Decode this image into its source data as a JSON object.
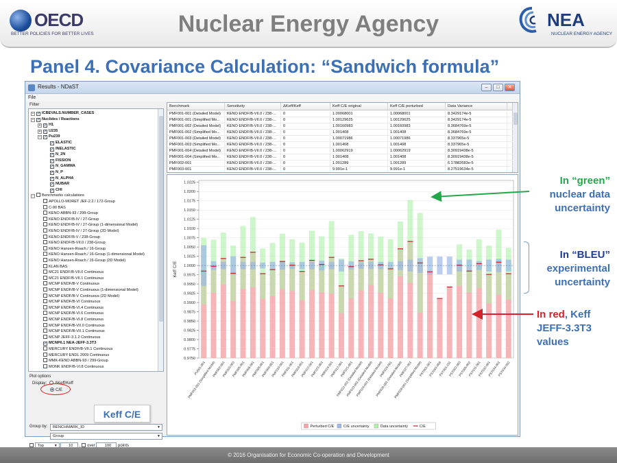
{
  "header": {
    "oecd_word": "OECD",
    "oecd_tagline": "BETTER POLICIES FOR BETTER LIVES",
    "title": "Nuclear Energy Agency",
    "nea_word": "NEA",
    "nea_tagline": "NUCLEAR ENERGY AGENCY"
  },
  "slide_title": "Panel 4. Covariance Calculation: “Sandwich formula”",
  "window": {
    "title": "Results - NDaST",
    "menu_file": "File",
    "controls": {
      "minimize": "–",
      "maximize": "□",
      "close": "✕"
    }
  },
  "filter": {
    "label": "Filter",
    "tree": [
      {
        "level": 0,
        "exp": "–",
        "checked": true,
        "bold": true,
        "label": "ICBEVALS.NUMBER_CASES"
      },
      {
        "level": 0,
        "exp": "–",
        "checked": true,
        "bold": true,
        "label": "Nuclides / Reactions"
      },
      {
        "level": 1,
        "exp": "+",
        "checked": true,
        "bold": true,
        "label": "H1"
      },
      {
        "level": 1,
        "exp": "+",
        "checked": true,
        "bold": true,
        "label": "U235"
      },
      {
        "level": 1,
        "exp": "–",
        "checked": true,
        "bold": true,
        "label": "Pu239"
      },
      {
        "level": 2,
        "exp": "",
        "checked": true,
        "bold": true,
        "label": "ELASTIC"
      },
      {
        "level": 2,
        "exp": "",
        "checked": true,
        "bold": true,
        "label": "INELASTIC"
      },
      {
        "level": 2,
        "exp": "",
        "checked": true,
        "bold": true,
        "label": "N_2N"
      },
      {
        "level": 2,
        "exp": "",
        "checked": true,
        "bold": true,
        "label": "FISSION"
      },
      {
        "level": 2,
        "exp": "",
        "checked": true,
        "bold": true,
        "label": "N_GAMMA"
      },
      {
        "level": 2,
        "exp": "",
        "checked": true,
        "bold": true,
        "label": "N_P"
      },
      {
        "level": 2,
        "exp": "",
        "checked": true,
        "bold": true,
        "label": "N_ALPHA"
      },
      {
        "level": 2,
        "exp": "",
        "checked": true,
        "bold": true,
        "label": "NUBAR"
      },
      {
        "level": 2,
        "exp": "",
        "checked": true,
        "bold": true,
        "label": "CHI"
      },
      {
        "level": 0,
        "exp": "–",
        "checked": false,
        "bold": false,
        "label": "Benchmarks calculations"
      },
      {
        "level": 1,
        "exp": "",
        "checked": false,
        "bold": false,
        "label": "APOLLO-MORET JEF-2.2 / 172-Group"
      },
      {
        "level": 1,
        "exp": "",
        "checked": false,
        "bold": false,
        "label": "C-90 BAS"
      },
      {
        "level": 1,
        "exp": "",
        "checked": false,
        "bold": false,
        "label": "KENO ABBN-93 / 299-Group"
      },
      {
        "level": 1,
        "exp": "",
        "checked": false,
        "bold": false,
        "label": "KENO ENDF/B-IV / 27-Group"
      },
      {
        "level": 1,
        "exp": "",
        "checked": false,
        "bold": false,
        "label": "KENO ENDF/B-IV / 27-Group (1-dimensional Model)"
      },
      {
        "level": 1,
        "exp": "",
        "checked": false,
        "bold": false,
        "label": "KENO ENDF/B-IV / 27-Group (2D Model)"
      },
      {
        "level": 1,
        "exp": "",
        "checked": false,
        "bold": false,
        "label": "KENO ENDF/B-V / 238-Group"
      },
      {
        "level": 1,
        "exp": "",
        "checked": false,
        "bold": false,
        "label": "KENO ENDF/B-VII.0 / 238-Group"
      },
      {
        "level": 1,
        "exp": "",
        "checked": false,
        "bold": false,
        "label": "KENO Hansen-Roach / 16-Group"
      },
      {
        "level": 1,
        "exp": "",
        "checked": false,
        "bold": false,
        "label": "KENO Hansen-Roach / 16-Group (1-dimensional Model)"
      },
      {
        "level": 1,
        "exp": "",
        "checked": false,
        "bold": false,
        "label": "KENO Hansen-Roach / 16-Group (2D Model)"
      },
      {
        "level": 1,
        "exp": "",
        "checked": false,
        "bold": false,
        "label": "KLAN BAS"
      },
      {
        "level": 1,
        "exp": "",
        "checked": false,
        "bold": false,
        "label": "MC21 ENDF/B-VII.0 Continuous"
      },
      {
        "level": 1,
        "exp": "",
        "checked": false,
        "bold": false,
        "label": "MC21 ENDF/B-VII.1 Continuous"
      },
      {
        "level": 1,
        "exp": "",
        "checked": false,
        "bold": false,
        "label": "MCNP ENDF/B-V Continuous"
      },
      {
        "level": 1,
        "exp": "",
        "checked": false,
        "bold": false,
        "label": "MCNP ENDF/B-V Continuous (1-dimensional Model)"
      },
      {
        "level": 1,
        "exp": "",
        "checked": false,
        "bold": false,
        "label": "MCNP ENDF/B-V Continuous (2D Model)"
      },
      {
        "level": 1,
        "exp": "",
        "checked": false,
        "bold": false,
        "label": "MCNP ENDF/B-VI Continuous"
      },
      {
        "level": 1,
        "exp": "",
        "checked": false,
        "bold": false,
        "label": "MCNP ENDF/B-VI.4 Continuous"
      },
      {
        "level": 1,
        "exp": "",
        "checked": false,
        "bold": false,
        "label": "MCNP ENDF/B-VI.6 Continuous"
      },
      {
        "level": 1,
        "exp": "",
        "checked": false,
        "bold": false,
        "label": "MCNP ENDF/B-VI.8 Continuous"
      },
      {
        "level": 1,
        "exp": "",
        "checked": false,
        "bold": false,
        "label": "MCNP ENDF/B-VII.0 Continuous"
      },
      {
        "level": 1,
        "exp": "",
        "checked": false,
        "bold": false,
        "label": "MCNP ENDF/B-VII.1 Continuous"
      },
      {
        "level": 1,
        "exp": "",
        "checked": false,
        "bold": false,
        "label": "MCNP JEFF-3.1.2 Continuous"
      },
      {
        "level": 1,
        "exp": "",
        "checked": true,
        "bold": true,
        "label": "MCNP6.1 NEA-JEFF-3.3T3"
      },
      {
        "level": 1,
        "exp": "",
        "checked": false,
        "bold": false,
        "label": "MERCURY ENDF/B-VII.1 Continuous"
      },
      {
        "level": 1,
        "exp": "",
        "checked": false,
        "bold": false,
        "label": "MERCURY ENDL 2009 Continuous"
      },
      {
        "level": 1,
        "exp": "",
        "checked": false,
        "bold": false,
        "label": "MMK-KENO ABBN-93 / 299-Group"
      },
      {
        "level": 1,
        "exp": "",
        "checked": false,
        "bold": false,
        "label": "MONK ENDF/B-VI.8 Continuous"
      }
    ]
  },
  "plot_options": {
    "label": "Plot options",
    "display_label": "Display:",
    "option_dkeff": "ΔKeff/Keff",
    "option_ce": "C/E",
    "group_by_label": "Group by:",
    "group_by_value": "BENCHMARK_ID",
    "group_value": "Group",
    "top_label": "Top",
    "top_value": "10",
    "over_label": "over",
    "over_value": "100",
    "points_label": "points",
    "comma": ","
  },
  "keff_callout": "Keff C/E",
  "table": {
    "columns": [
      "Benchmark",
      "Sensitivity",
      "ΔKeff/Keff",
      "Keff C/E original",
      "Keff C/E perturbed",
      "Data Variance"
    ],
    "rows": [
      [
        "PMF001-001 (Detailed Model)",
        "KENO ENDF/B-VII.0 / 238-...",
        "0",
        "1.00068001",
        "1.00068001",
        "8.3429174e-5"
      ],
      [
        "PMF001-001 (Simplified Mo...",
        "KENO ENDF/B-VII.0 / 238-...",
        "0",
        "1.00129625",
        "1.00129625",
        "8.3429174e-5"
      ],
      [
        "PMF001-002 (Detailed Model)",
        "KENO ENDF/B-VII.0 / 238-...",
        "0",
        "1.00160983",
        "1.00160983",
        "8.3684769e-5"
      ],
      [
        "PMF001-002 (Simplified Mo...",
        "KENO ENDF/B-VII.0 / 238-...",
        "0",
        "1.001408",
        "1.001408",
        "8.3684769e-5"
      ],
      [
        "PMF001-003 (Detailed Model)",
        "KENO ENDF/B-VII.0 / 238-...",
        "0",
        "1.00071986",
        "1.00071986",
        "8.337965e-5"
      ],
      [
        "PMF001-003 (Simplified Mo...",
        "KENO ENDF/B-VII.0 / 238-...",
        "0",
        "1.001408",
        "1.001408",
        "8.337965e-5"
      ],
      [
        "PMF001-004 (Detailed Model)",
        "KENO ENDF/B-VII.0 / 238-...",
        "0",
        "1.00062919",
        "1.00062919",
        "8.30919438e-5"
      ],
      [
        "PMF001-004 (Simplified Mo...",
        "KENO ENDF/B-VII.0 / 238-...",
        "0",
        "1.001408",
        "1.001408",
        "8.30919438e-5"
      ],
      [
        "PMF002-001",
        "KENO ENDF/B-VII.0 / 238-...",
        "0",
        "1.001289",
        "1.001289",
        "6.17882683e-5"
      ],
      [
        "PMF003-001",
        "KENO ENDF/B-VII.0 / 238-...",
        "0",
        "9.991e-1",
        "9.991e-1",
        "8.27519634e-5"
      ]
    ]
  },
  "chart_data": {
    "type": "bar",
    "ylabel": "Keff C/E",
    "ylim": [
      0.975,
      1.023
    ],
    "yticks": [
      "0.9750",
      "0.9775",
      "0.9800",
      "0.9825",
      "0.9850",
      "0.9875",
      "0.9900",
      "0.9925",
      "0.9950",
      "0.9975",
      "1.0000",
      "1.0025",
      "1.0050",
      "1.0075",
      "1.0100",
      "1.0125",
      "1.0150",
      "1.0175",
      "1.0200",
      "1.0225"
    ],
    "ytick_values": [
      0.975,
      0.9775,
      0.98,
      0.9825,
      0.985,
      0.9875,
      0.99,
      0.9925,
      0.995,
      0.9975,
      1.0,
      1.0025,
      1.005,
      1.0075,
      1.01,
      1.0125,
      1.015,
      1.0175,
      1.02,
      1.0225
    ],
    "categories": [
      "PU001-001",
      "PMF001-001 (Simplified Model)",
      "PMF002-001",
      "PMF003-003",
      "PMF005-001",
      "PMF006-001",
      "PMF008-001",
      "PMF009-001",
      "PMF010-001",
      "PMF011-001",
      "PMF018-001",
      "PMF022-001",
      "PMF023-001",
      "PMF024-001",
      "PMF012-001",
      "PMF021-001",
      "PMF022-001 (Detailed Model)",
      "PMF023-001 (Detailed Model)",
      "PMF024-001 (Detailed Model)",
      "PMF025-001",
      "PMF026-001 (Detailed Model)",
      "PMF027-001",
      "PMF028-001 (Simplified Model)",
      "PST001-001",
      "PST001-006",
      "PST001-011",
      "PST002-003",
      "PST005-002",
      "PST031-001",
      "PST032-001",
      "PST034-001",
      "PST034-002"
    ],
    "series": [
      {
        "name": "Perturbed C/E",
        "values": [
          0.9985,
          0.9998,
          1.0019,
          0.9979,
          1.0022,
          1.0036,
          0.9978,
          0.9989,
          1.0011,
          1.0001,
          0.9984,
          1.0014,
          1.0003,
          1.0022,
          0.9945,
          0.9997,
          1.0013,
          1.0017,
          1.0002,
          0.9991,
          1.0045,
          1.0065,
          1.0007,
          0.9983,
          0.9911,
          0.9942,
          1.0001,
          0.9985,
          1.0005,
          0.9976,
          1.0009,
          0.9978
        ]
      },
      {
        "name": "C/E uncertainty",
        "values": [
          0.0055,
          0.0012,
          0.001,
          0.0025,
          0.001,
          0.001,
          0.0008,
          0.001,
          0.0011,
          0.0009,
          0.001,
          0.001,
          0.0013,
          0.001,
          0.0016,
          0.0011,
          0.0009,
          0.001,
          0.001,
          0.001,
          0.0012,
          0.0016,
          0.002,
          0.0024,
          0.0024,
          0.0024,
          0.0016,
          0.0016,
          0.0012,
          0.0016,
          0.0018,
          0.0016
        ]
      },
      {
        "name": "Data uncertainty",
        "values": [
          0.009,
          0.0072,
          0.007,
          0.0075,
          0.0085,
          0.0095,
          0.0068,
          0.0072,
          0.0075,
          0.007,
          0.0078,
          0.008,
          0.0076,
          0.0098,
          0.0074,
          0.0086,
          0.008,
          0.007,
          0.0076,
          0.008,
          0.0074,
          0.0112,
          0.0135,
          0.0,
          0.0,
          0.0,
          0.0056,
          0.0058,
          0.0066,
          0.0078,
          0.0088,
          0.007
        ]
      },
      {
        "name": "C/E",
        "values": [
          0.9985,
          0.9998,
          1.0019,
          0.9979,
          1.0022,
          1.0036,
          0.9978,
          0.9989,
          1.0011,
          1.0001,
          0.9984,
          1.0014,
          1.0003,
          1.0022,
          0.9945,
          0.9997,
          1.0013,
          1.0017,
          1.0002,
          0.9991,
          1.0045,
          1.0065,
          1.0007,
          0.9983,
          0.9911,
          0.9942,
          1.0001,
          0.9985,
          1.0005,
          0.9976,
          1.0009,
          0.9978
        ]
      }
    ],
    "legend": [
      "Perturbed C/E",
      "C/E uncertainty",
      "Data uncertainty",
      "C/E"
    ],
    "legend_placement": "bottom",
    "colors": {
      "perturbed": "#f4a3a6",
      "ce_uncertainty": "#9db8e6",
      "data_uncertainty": "#aef0a8",
      "ce_line": "#c0202a"
    }
  },
  "annotations": {
    "green_word": "In “green”",
    "green_rest_1": "nuclear data",
    "green_rest_2": "uncertainty",
    "bleu_word": "In “BLEU”",
    "bleu_rest_1": "experimental",
    "bleu_rest_2": "uncertainty",
    "red_word": "In red",
    "red_rest_1": ", Keff",
    "red_rest_2": "JEFF-3.3T3",
    "red_rest_3": "values"
  },
  "footer": "© 2016 Organisation for Economic Co-operation and Development",
  "colors": {
    "accent_blue": "#3d6fb5",
    "green": "#22a84a",
    "red": "#d0232a"
  }
}
